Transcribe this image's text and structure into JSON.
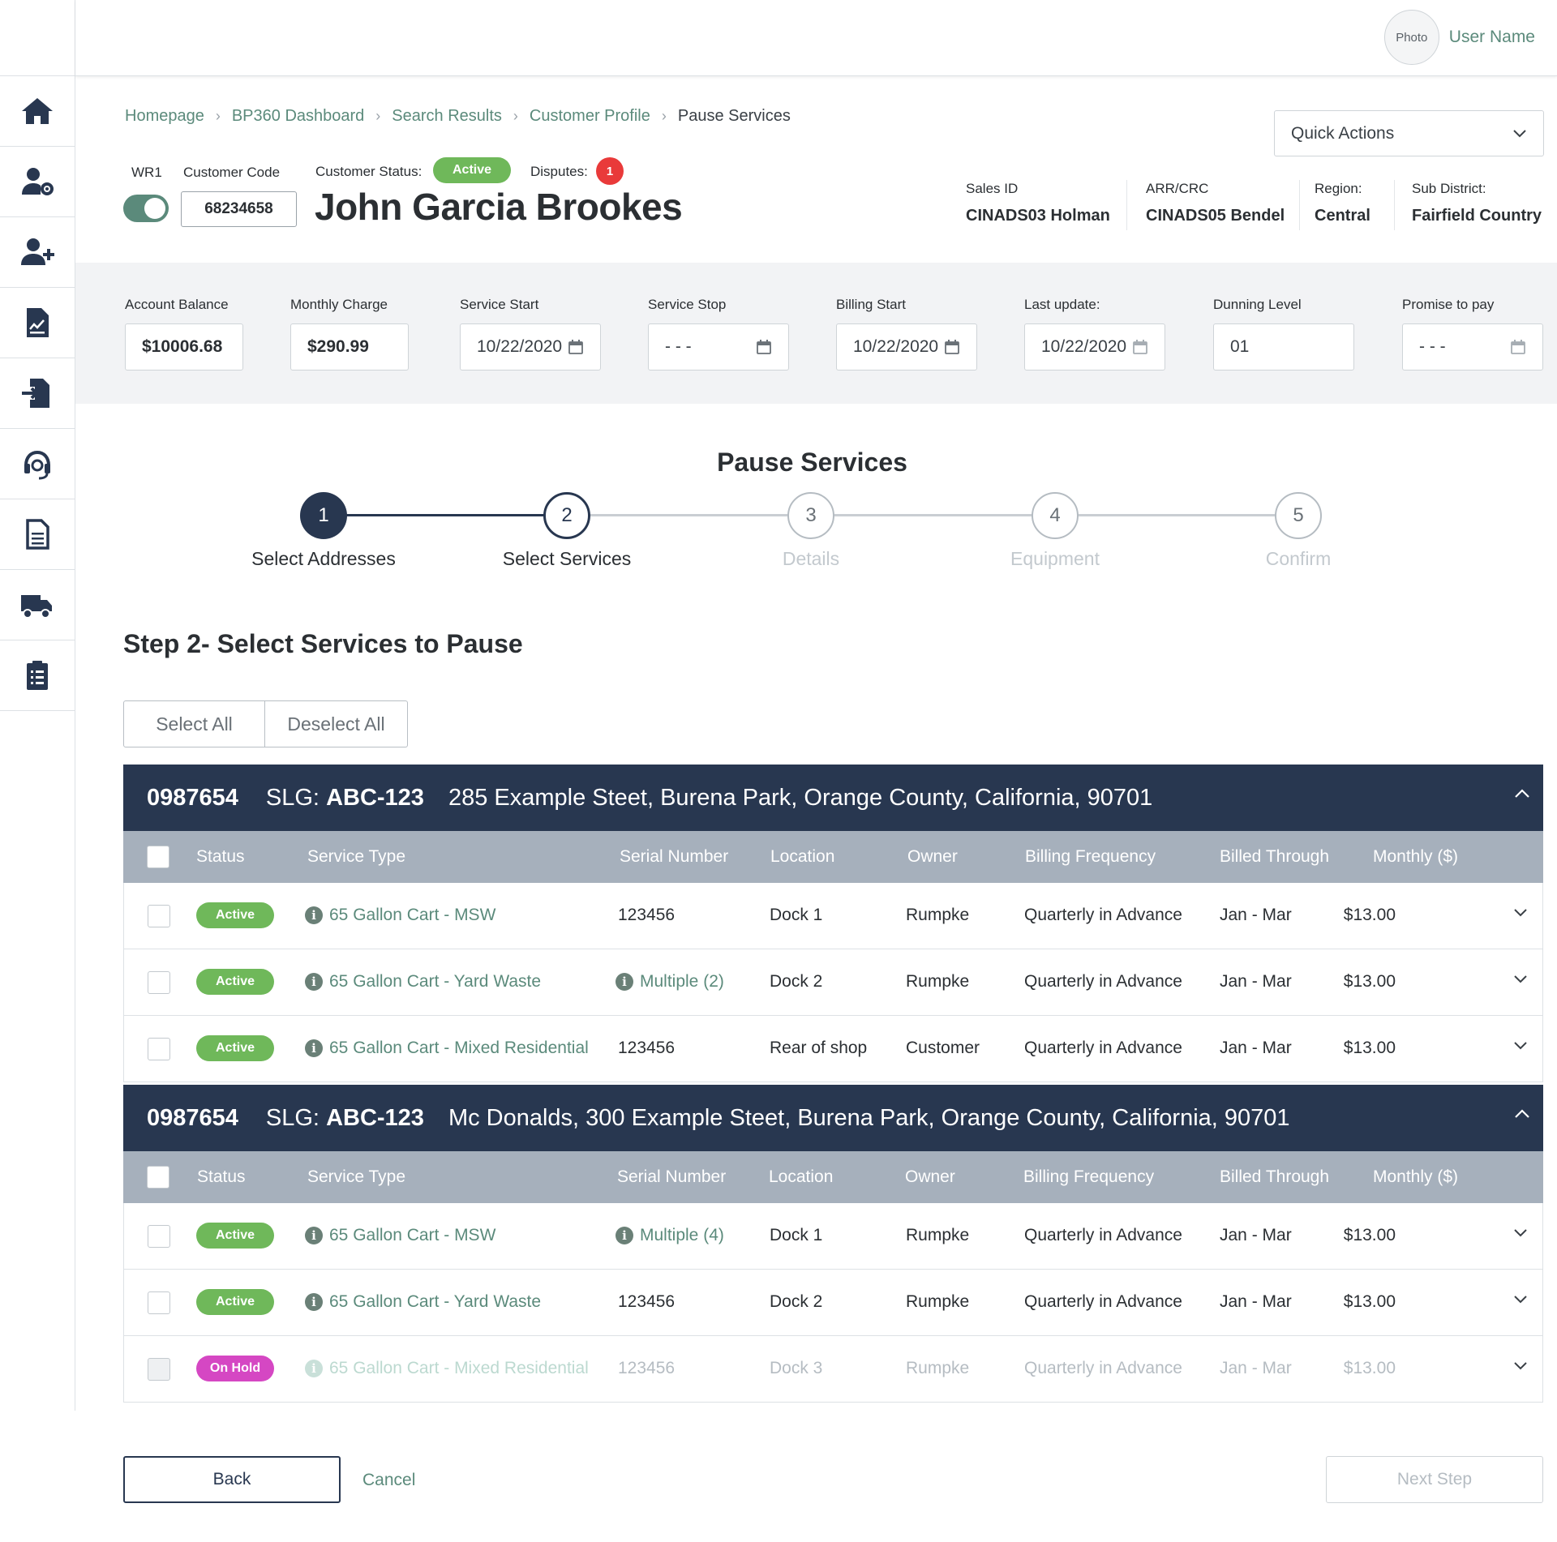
{
  "header": {
    "avatar_text": "Photo",
    "user_name": "User Name"
  },
  "breadcrumb": [
    "Homepage",
    "BP360 Dashboard",
    "Search Results",
    "Customer Profile",
    "Pause Services"
  ],
  "quick_actions": {
    "label": "Quick Actions"
  },
  "customer": {
    "wr1_label": "WR1",
    "code_label": "Customer Code",
    "code": "68234658",
    "status_label": "Customer Status:",
    "status": "Active",
    "disputes_label": "Disputes:",
    "disputes_count": "1",
    "name": "John Garcia Brookes",
    "meta": [
      {
        "label": "Sales ID",
        "value": "CINADS03 Holman"
      },
      {
        "label": "ARR/CRC",
        "value": "CINADS05 Bendel"
      },
      {
        "label": "Region:",
        "value": "Central"
      },
      {
        "label": "Sub District:",
        "value": "Fairfield Country"
      }
    ]
  },
  "account": {
    "balance_label": "Account Balance",
    "balance": "$10006.68",
    "monthly_label": "Monthly Charge",
    "monthly": "$290.99",
    "service_start_label": "Service Start",
    "service_start": "10/22/2020",
    "service_stop_label": "Service Stop",
    "service_stop": "- - -",
    "billing_start_label": "Billing Start",
    "billing_start": "10/22/2020",
    "last_update_label": "Last update:",
    "last_update": "10/22/2020",
    "dunning_label": "Dunning Level",
    "dunning": "01",
    "promise_label": "Promise to pay",
    "promise": "- - -"
  },
  "wizard": {
    "title": "Pause Services",
    "steps": [
      {
        "number": "1",
        "label": "Select Addresses"
      },
      {
        "number": "2",
        "label": "Select Services"
      },
      {
        "number": "3",
        "label": "Details"
      },
      {
        "number": "4",
        "label": "Equipment"
      },
      {
        "number": "5",
        "label": "Confirm"
      }
    ],
    "current_step": 2
  },
  "step_heading": "Step 2- Select Services to Pause",
  "select_all": "Select All",
  "deselect_all": "Deselect All",
  "columns": [
    "Status",
    "Service Type",
    "Serial Number",
    "Location",
    "Owner",
    "Billing Frequency",
    "Billed Through",
    "Monthly ($)"
  ],
  "groups": [
    {
      "account": "0987654",
      "slg_label": "SLG:",
      "slg": "ABC-123",
      "address": "285 Example Steet, Burena Park, Orange County, California, 90701",
      "rows": [
        {
          "status": "Active",
          "service": "65 Gallon Cart - MSW",
          "serial": "123456",
          "location": "Dock 1",
          "owner": "Rumpke",
          "frequency": "Quarterly in Advance",
          "billed": "Jan - Mar",
          "monthly": "$13.00"
        },
        {
          "status": "Active",
          "service": "65 Gallon Cart - Yard Waste",
          "serial": "Multiple (2)",
          "location": "Dock 2",
          "owner": "Rumpke",
          "frequency": "Quarterly in Advance",
          "billed": "Jan - Mar",
          "monthly": "$13.00"
        },
        {
          "status": "Active",
          "service": "65 Gallon Cart - Mixed Residential",
          "serial": "123456",
          "location": "Rear of shop",
          "owner": "Customer",
          "frequency": "Quarterly in Advance",
          "billed": "Jan - Mar",
          "monthly": "$13.00"
        }
      ]
    },
    {
      "account": "0987654",
      "slg_label": "SLG:",
      "slg": "ABC-123",
      "address": "Mc Donalds, 300 Example Steet, Burena Park, Orange County, California, 90701",
      "rows": [
        {
          "status": "Active",
          "service": "65 Gallon Cart - MSW",
          "serial": "Multiple (4)",
          "location": "Dock 1",
          "owner": "Rumpke",
          "frequency": "Quarterly in Advance",
          "billed": "Jan - Mar",
          "monthly": "$13.00"
        },
        {
          "status": "Active",
          "service": "65 Gallon Cart - Yard Waste",
          "serial": "123456",
          "location": "Dock 2",
          "owner": "Rumpke",
          "frequency": "Quarterly in Advance",
          "billed": "Jan - Mar",
          "monthly": "$13.00"
        },
        {
          "status": "On Hold",
          "service": "65 Gallon Cart - Mixed Residential",
          "serial": "123456",
          "location": "Dock 3",
          "owner": "Rumpke",
          "frequency": "Quarterly in Advance",
          "billed": "Jan - Mar",
          "monthly": "$13.00"
        }
      ]
    }
  ],
  "footer": {
    "back": "Back",
    "cancel": "Cancel",
    "next": "Next Step"
  },
  "colors": {
    "navy": "#283750",
    "accent_green": "#5b8a7b",
    "status_active": "#6fb85a",
    "status_hold": "#d547c3",
    "dispute_red": "#e93a3a",
    "column_header": "#a6b0bc"
  }
}
